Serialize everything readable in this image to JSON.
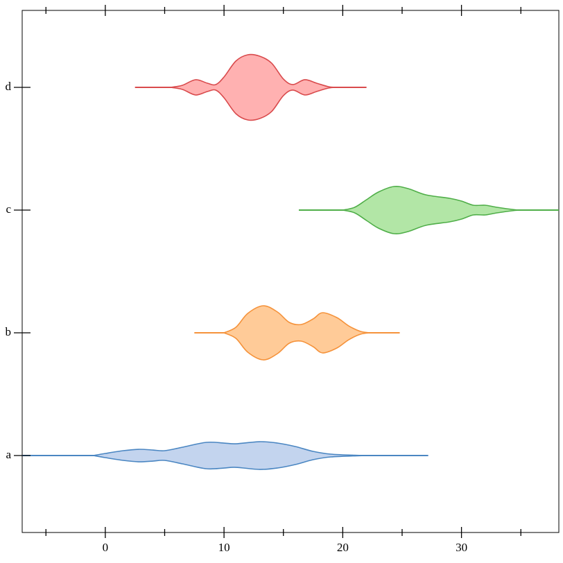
{
  "chart_data": {
    "type": "violin",
    "categories": [
      "a",
      "b",
      "c",
      "d"
    ],
    "xlim": [
      -7,
      38.2
    ],
    "xticks": [
      0,
      10,
      20,
      30
    ],
    "xminorticks": [
      -5,
      5,
      15,
      25,
      35
    ],
    "violins": [
      {
        "color": "#4a86c2",
        "fill": "#c3d4ee",
        "range": [
          -8,
          27.2
        ],
        "x": [
          -1,
          0,
          1.5,
          2.8,
          4,
          5,
          6.5,
          8.5,
          10,
          11,
          13,
          14.5,
          16,
          17.5,
          19,
          21,
          22
        ],
        "density": [
          0,
          0.03,
          0.07,
          0.09,
          0.08,
          0.07,
          0.12,
          0.19,
          0.18,
          0.17,
          0.2,
          0.18,
          0.13,
          0.06,
          0.02,
          0.005,
          0
        ]
      },
      {
        "color": "#f5923a",
        "fill": "#ffcb98",
        "range": [
          7.5,
          24.8
        ],
        "x": [
          10,
          11,
          12,
          13.3,
          14.5,
          15.5,
          16.5,
          17.5,
          18.3,
          19.5,
          20.5,
          21.5,
          22.3
        ],
        "density": [
          0,
          0.08,
          0.28,
          0.39,
          0.3,
          0.15,
          0.12,
          0.2,
          0.29,
          0.22,
          0.1,
          0.02,
          0
        ]
      },
      {
        "color": "#4fae48",
        "fill": "#b2e6a6",
        "range": [
          16.3,
          39
        ],
        "x": [
          20,
          21,
          22,
          23,
          24.3,
          25.5,
          27,
          29,
          30,
          31,
          32,
          33,
          34.5,
          35
        ],
        "density": [
          0,
          0.04,
          0.15,
          0.26,
          0.34,
          0.31,
          0.22,
          0.17,
          0.13,
          0.07,
          0.07,
          0.04,
          0.005,
          0
        ]
      },
      {
        "color": "#d94a4c",
        "fill": "#ffb1b1",
        "range": [
          2.5,
          22
        ],
        "x": [
          5.5,
          6.5,
          7.6,
          8.6,
          9.3,
          10,
          11,
          12,
          13,
          14,
          15,
          15.8,
          16.8,
          17.8,
          18.8,
          19.5
        ],
        "density": [
          0,
          0.03,
          0.11,
          0.06,
          0.04,
          0.15,
          0.38,
          0.47,
          0.45,
          0.35,
          0.12,
          0.04,
          0.11,
          0.06,
          0.01,
          0
        ]
      }
    ]
  }
}
